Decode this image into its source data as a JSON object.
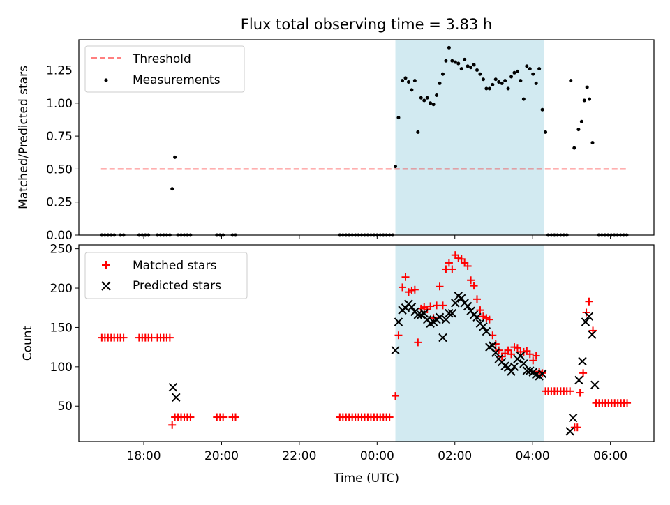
{
  "chart_data": {
    "type": "scatter",
    "title": "Flux total observing time = 3.83 h",
    "xlabel": "Time (UTC)",
    "x_ticks": [
      "18:00",
      "20:00",
      "22:00",
      "00:00",
      "02:00",
      "04:00",
      "06:00"
    ],
    "x_tick_hours": [
      18,
      20,
      22,
      24,
      26,
      28,
      30
    ],
    "xlim_hours": [
      16.33,
      31.12
    ],
    "observing_window_hours": [
      24.47,
      28.3
    ],
    "colors": {
      "threshold": "#ff0000",
      "measurements": "#000000",
      "matched": "#ff0000",
      "predicted": "#000000",
      "window": "#add8e6"
    },
    "top": {
      "ylabel": "Matched/Predicted stars",
      "ylim": [
        0,
        1.48
      ],
      "y_ticks": [
        0.0,
        0.25,
        0.5,
        0.75,
        1.0,
        1.25
      ],
      "y_tick_labels": [
        "0.00",
        "0.25",
        "0.50",
        "0.75",
        "1.00",
        "1.25"
      ],
      "legend": [
        "Threshold",
        "Measurements"
      ],
      "threshold": {
        "value": 0.5,
        "x": [
          16.9,
          30.45
        ]
      },
      "measurements": [
        [
          16.92,
          0
        ],
        [
          17.0,
          0
        ],
        [
          17.08,
          0
        ],
        [
          17.16,
          0
        ],
        [
          17.24,
          0
        ],
        [
          17.4,
          0
        ],
        [
          17.48,
          0
        ],
        [
          17.88,
          0
        ],
        [
          17.96,
          0
        ],
        [
          18.04,
          0
        ],
        [
          18.12,
          0
        ],
        [
          18.35,
          0
        ],
        [
          18.43,
          0
        ],
        [
          18.51,
          0
        ],
        [
          18.59,
          0
        ],
        [
          18.67,
          0
        ],
        [
          18.73,
          0.35
        ],
        [
          18.8,
          0.59
        ],
        [
          18.88,
          0
        ],
        [
          18.96,
          0
        ],
        [
          19.04,
          0
        ],
        [
          19.12,
          0
        ],
        [
          19.2,
          0
        ],
        [
          19.88,
          0
        ],
        [
          19.96,
          0
        ],
        [
          20.04,
          0
        ],
        [
          20.28,
          0
        ],
        [
          20.36,
          0
        ],
        [
          23.04,
          0
        ],
        [
          23.12,
          0
        ],
        [
          23.2,
          0
        ],
        [
          23.28,
          0
        ],
        [
          23.36,
          0
        ],
        [
          23.44,
          0
        ],
        [
          23.52,
          0
        ],
        [
          23.6,
          0
        ],
        [
          23.68,
          0
        ],
        [
          23.76,
          0
        ],
        [
          23.84,
          0
        ],
        [
          23.92,
          0
        ],
        [
          24.0,
          0
        ],
        [
          24.08,
          0
        ],
        [
          24.16,
          0
        ],
        [
          24.24,
          0
        ],
        [
          24.32,
          0
        ],
        [
          24.4,
          0
        ],
        [
          24.47,
          0.52
        ],
        [
          24.55,
          0.89
        ],
        [
          24.65,
          1.17
        ],
        [
          24.73,
          1.19
        ],
        [
          24.81,
          1.16
        ],
        [
          24.89,
          1.1
        ],
        [
          24.97,
          1.17
        ],
        [
          25.05,
          0.78
        ],
        [
          25.13,
          1.04
        ],
        [
          25.21,
          1.02
        ],
        [
          25.29,
          1.04
        ],
        [
          25.37,
          1.0
        ],
        [
          25.45,
          0.99
        ],
        [
          25.53,
          1.06
        ],
        [
          25.61,
          1.15
        ],
        [
          25.69,
          1.22
        ],
        [
          25.77,
          1.32
        ],
        [
          25.85,
          1.42
        ],
        [
          25.93,
          1.32
        ],
        [
          26.01,
          1.31
        ],
        [
          26.09,
          1.3
        ],
        [
          26.17,
          1.26
        ],
        [
          26.25,
          1.33
        ],
        [
          26.33,
          1.28
        ],
        [
          26.41,
          1.27
        ],
        [
          26.49,
          1.29
        ],
        [
          26.57,
          1.25
        ],
        [
          26.65,
          1.22
        ],
        [
          26.73,
          1.18
        ],
        [
          26.81,
          1.11
        ],
        [
          26.89,
          1.11
        ],
        [
          26.97,
          1.14
        ],
        [
          27.05,
          1.18
        ],
        [
          27.13,
          1.16
        ],
        [
          27.21,
          1.15
        ],
        [
          27.29,
          1.17
        ],
        [
          27.37,
          1.11
        ],
        [
          27.45,
          1.2
        ],
        [
          27.53,
          1.23
        ],
        [
          27.61,
          1.24
        ],
        [
          27.69,
          1.17
        ],
        [
          27.77,
          1.03
        ],
        [
          27.85,
          1.28
        ],
        [
          27.93,
          1.26
        ],
        [
          28.01,
          1.22
        ],
        [
          28.09,
          1.15
        ],
        [
          28.17,
          1.26
        ],
        [
          28.25,
          0.95
        ],
        [
          28.33,
          0.78
        ],
        [
          28.4,
          0
        ],
        [
          28.48,
          0
        ],
        [
          28.56,
          0
        ],
        [
          28.64,
          0
        ],
        [
          28.72,
          0
        ],
        [
          28.8,
          0
        ],
        [
          28.88,
          0
        ],
        [
          28.98,
          1.17
        ],
        [
          29.07,
          0.66
        ],
        [
          29.18,
          0.8
        ],
        [
          29.26,
          0.86
        ],
        [
          29.33,
          1.02
        ],
        [
          29.4,
          1.12
        ],
        [
          29.46,
          1.03
        ],
        [
          29.54,
          0.7
        ],
        [
          29.7,
          0
        ],
        [
          29.78,
          0
        ],
        [
          29.86,
          0
        ],
        [
          29.94,
          0
        ],
        [
          30.02,
          0
        ],
        [
          30.1,
          0
        ],
        [
          30.18,
          0
        ],
        [
          30.26,
          0
        ],
        [
          30.34,
          0
        ],
        [
          30.42,
          0
        ]
      ]
    },
    "bottom": {
      "ylabel": "Count",
      "ylim": [
        5,
        255
      ],
      "y_ticks": [
        50,
        100,
        150,
        200,
        250
      ],
      "y_tick_labels": [
        "50",
        "100",
        "150",
        "200",
        "250"
      ],
      "legend": [
        "Matched stars",
        "Predicted stars"
      ],
      "matched": [
        [
          16.92,
          137
        ],
        [
          17.0,
          137
        ],
        [
          17.08,
          137
        ],
        [
          17.16,
          137
        ],
        [
          17.24,
          137
        ],
        [
          17.32,
          137
        ],
        [
          17.4,
          137
        ],
        [
          17.48,
          137
        ],
        [
          17.88,
          137
        ],
        [
          17.96,
          137
        ],
        [
          18.04,
          137
        ],
        [
          18.12,
          137
        ],
        [
          18.2,
          137
        ],
        [
          18.35,
          137
        ],
        [
          18.43,
          137
        ],
        [
          18.51,
          137
        ],
        [
          18.59,
          137
        ],
        [
          18.67,
          137
        ],
        [
          18.73,
          26
        ],
        [
          18.8,
          36
        ],
        [
          18.88,
          36
        ],
        [
          18.96,
          36
        ],
        [
          19.04,
          36
        ],
        [
          19.12,
          36
        ],
        [
          19.2,
          36
        ],
        [
          19.88,
          36
        ],
        [
          19.96,
          36
        ],
        [
          20.04,
          36
        ],
        [
          20.28,
          36
        ],
        [
          20.36,
          36
        ],
        [
          23.04,
          36
        ],
        [
          23.12,
          36
        ],
        [
          23.2,
          36
        ],
        [
          23.28,
          36
        ],
        [
          23.36,
          36
        ],
        [
          23.44,
          36
        ],
        [
          23.52,
          36
        ],
        [
          23.6,
          36
        ],
        [
          23.68,
          36
        ],
        [
          23.76,
          36
        ],
        [
          23.84,
          36
        ],
        [
          23.92,
          36
        ],
        [
          24.0,
          36
        ],
        [
          24.08,
          36
        ],
        [
          24.16,
          36
        ],
        [
          24.24,
          36
        ],
        [
          24.32,
          36
        ],
        [
          24.47,
          63
        ],
        [
          24.55,
          140
        ],
        [
          24.65,
          201
        ],
        [
          24.73,
          214
        ],
        [
          24.81,
          195
        ],
        [
          24.89,
          197
        ],
        [
          24.97,
          198
        ],
        [
          25.05,
          131
        ],
        [
          25.13,
          174
        ],
        [
          25.21,
          176
        ],
        [
          25.29,
          173
        ],
        [
          25.37,
          177
        ],
        [
          25.45,
          162
        ],
        [
          25.53,
          178
        ],
        [
          25.61,
          202
        ],
        [
          25.69,
          178
        ],
        [
          25.77,
          224
        ],
        [
          25.85,
          232
        ],
        [
          25.93,
          224
        ],
        [
          26.01,
          242
        ],
        [
          26.09,
          238
        ],
        [
          26.17,
          237
        ],
        [
          26.25,
          232
        ],
        [
          26.33,
          228
        ],
        [
          26.41,
          210
        ],
        [
          26.49,
          203
        ],
        [
          26.57,
          186
        ],
        [
          26.65,
          172
        ],
        [
          26.73,
          164
        ],
        [
          26.81,
          162
        ],
        [
          26.89,
          160
        ],
        [
          26.97,
          140
        ],
        [
          27.05,
          129
        ],
        [
          27.13,
          121
        ],
        [
          27.21,
          113
        ],
        [
          27.29,
          117
        ],
        [
          27.37,
          121
        ],
        [
          27.45,
          116
        ],
        [
          27.53,
          125
        ],
        [
          27.61,
          124
        ],
        [
          27.69,
          119
        ],
        [
          27.77,
          119
        ],
        [
          27.85,
          120
        ],
        [
          27.93,
          116
        ],
        [
          28.01,
          108
        ],
        [
          28.09,
          114
        ],
        [
          28.17,
          94
        ],
        [
          28.25,
          92
        ],
        [
          28.33,
          69
        ],
        [
          28.4,
          69
        ],
        [
          28.48,
          69
        ],
        [
          28.56,
          69
        ],
        [
          28.64,
          69
        ],
        [
          28.72,
          69
        ],
        [
          28.8,
          69
        ],
        [
          28.88,
          69
        ],
        [
          28.96,
          69
        ],
        [
          29.08,
          23
        ],
        [
          29.15,
          23
        ],
        [
          29.22,
          67
        ],
        [
          29.3,
          92
        ],
        [
          29.38,
          169
        ],
        [
          29.45,
          183
        ],
        [
          29.55,
          146
        ],
        [
          29.63,
          54
        ],
        [
          29.71,
          54
        ],
        [
          29.79,
          54
        ],
        [
          29.87,
          54
        ],
        [
          29.95,
          54
        ],
        [
          30.03,
          54
        ],
        [
          30.11,
          54
        ],
        [
          30.19,
          54
        ],
        [
          30.27,
          54
        ],
        [
          30.35,
          54
        ],
        [
          30.43,
          54
        ]
      ],
      "predicted": [
        [
          18.75,
          74
        ],
        [
          18.83,
          61
        ],
        [
          24.47,
          121
        ],
        [
          24.55,
          157
        ],
        [
          24.65,
          172
        ],
        [
          24.73,
          175
        ],
        [
          24.81,
          180
        ],
        [
          24.89,
          176
        ],
        [
          24.97,
          170
        ],
        [
          25.05,
          166
        ],
        [
          25.13,
          166
        ],
        [
          25.21,
          168
        ],
        [
          25.29,
          160
        ],
        [
          25.37,
          155
        ],
        [
          25.45,
          157
        ],
        [
          25.53,
          160
        ],
        [
          25.61,
          163
        ],
        [
          25.69,
          137
        ],
        [
          25.77,
          160
        ],
        [
          25.85,
          168
        ],
        [
          25.93,
          168
        ],
        [
          26.01,
          181
        ],
        [
          26.09,
          190
        ],
        [
          26.17,
          187
        ],
        [
          26.25,
          181
        ],
        [
          26.33,
          177
        ],
        [
          26.41,
          171
        ],
        [
          26.49,
          166
        ],
        [
          26.57,
          163
        ],
        [
          26.65,
          155
        ],
        [
          26.73,
          151
        ],
        [
          26.81,
          145
        ],
        [
          26.89,
          125
        ],
        [
          26.97,
          127
        ],
        [
          27.05,
          118
        ],
        [
          27.13,
          110
        ],
        [
          27.21,
          106
        ],
        [
          27.29,
          101
        ],
        [
          27.37,
          99
        ],
        [
          27.45,
          94
        ],
        [
          27.53,
          100
        ],
        [
          27.61,
          110
        ],
        [
          27.69,
          114
        ],
        [
          27.77,
          104
        ],
        [
          27.85,
          95
        ],
        [
          27.93,
          95
        ],
        [
          28.01,
          93
        ],
        [
          28.09,
          90
        ],
        [
          28.17,
          88
        ],
        [
          28.25,
          91
        ],
        [
          28.96,
          18
        ],
        [
          29.04,
          35
        ],
        [
          29.19,
          83
        ],
        [
          29.28,
          107
        ],
        [
          29.36,
          157
        ],
        [
          29.45,
          164
        ],
        [
          29.53,
          141
        ],
        [
          29.6,
          77
        ]
      ]
    }
  }
}
